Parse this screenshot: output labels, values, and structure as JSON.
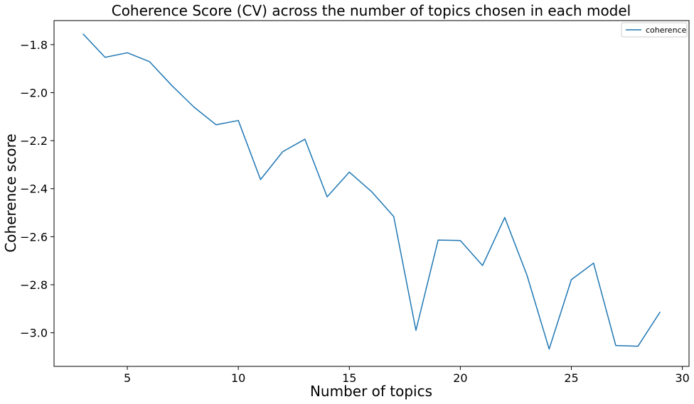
{
  "chart_data": {
    "type": "line",
    "title": "Coherence Score (CV) across the number of topics chosen in each model",
    "xlabel": "Number of topics",
    "ylabel": "Coherence score",
    "xlim": [
      1.7,
      30.3
    ],
    "ylim": [
      -3.14,
      -1.7
    ],
    "xticks": [
      5,
      10,
      15,
      20,
      25,
      30
    ],
    "yticks": [
      -1.8,
      -2.0,
      -2.2,
      -2.4,
      -2.6,
      -2.8,
      -3.0
    ],
    "xtick_labels": [
      "5",
      "10",
      "15",
      "20",
      "25",
      "30"
    ],
    "ytick_labels": [
      "−1.8",
      "−2.0",
      "−2.2",
      "−2.4",
      "−2.6",
      "−2.8",
      "−3.0"
    ],
    "grid": false,
    "legend_position": "top-right",
    "series": [
      {
        "name": "coherence",
        "color": "#1f77b4",
        "x": [
          3,
          4,
          5,
          6,
          7,
          8,
          9,
          10,
          11,
          12,
          13,
          14,
          15,
          16,
          17,
          18,
          19,
          20,
          21,
          22,
          23,
          24,
          25,
          26,
          27,
          28,
          29
        ],
        "y": [
          -1.755,
          -1.853,
          -1.834,
          -1.871,
          -1.97,
          -2.06,
          -2.134,
          -2.116,
          -2.362,
          -2.246,
          -2.194,
          -2.434,
          -2.331,
          -2.412,
          -2.516,
          -2.99,
          -2.614,
          -2.616,
          -2.72,
          -2.52,
          -2.76,
          -3.068,
          -2.779,
          -2.71,
          -3.053,
          -3.056,
          -2.913
        ]
      }
    ]
  }
}
